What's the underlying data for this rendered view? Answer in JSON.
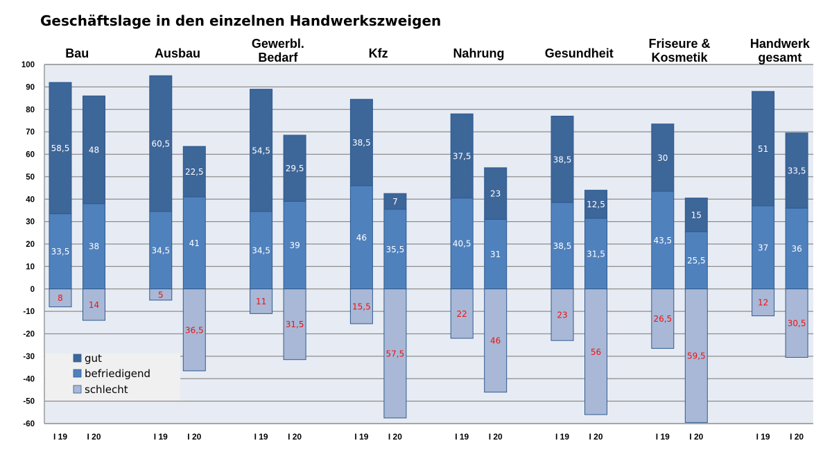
{
  "chart_data": {
    "type": "bar",
    "stacked": true,
    "title": "Geschäftslage in den einzelnen Handwerkszweigen",
    "xlabel": "",
    "ylabel": "",
    "ylim": [
      -60,
      100
    ],
    "yticks": [
      100,
      90,
      80,
      70,
      60,
      50,
      40,
      30,
      20,
      10,
      0,
      -10,
      -20,
      -30,
      -40,
      -50,
      -60
    ],
    "grid": true,
    "legend_position": "bottom-left",
    "groups": [
      {
        "label_lines": [
          "Bau"
        ]
      },
      {
        "label_lines": [
          "Ausbau"
        ]
      },
      {
        "label_lines": [
          "Gewerbl.",
          "Bedarf"
        ]
      },
      {
        "label_lines": [
          "Kfz"
        ]
      },
      {
        "label_lines": [
          "Nahrung"
        ]
      },
      {
        "label_lines": [
          "Gesundheit"
        ]
      },
      {
        "label_lines": [
          "Friseure &",
          "Kosmetik"
        ]
      },
      {
        "label_lines": [
          "Handwerk",
          "gesamt"
        ]
      }
    ],
    "periods": [
      "I 19",
      "I 20"
    ],
    "series": [
      {
        "name": "gut",
        "color": "#3d6699",
        "label_color": "#ffffff",
        "values": [
          [
            58.5,
            48
          ],
          [
            60.5,
            22.5
          ],
          [
            54.5,
            29.5
          ],
          [
            38.5,
            7
          ],
          [
            37.5,
            23
          ],
          [
            38.5,
            12.5
          ],
          [
            30,
            15
          ],
          [
            51,
            33.5
          ]
        ],
        "labels": [
          [
            "58,5",
            "48"
          ],
          [
            "60,5",
            "22,5"
          ],
          [
            "54,5",
            "29,5"
          ],
          [
            "38,5",
            "7"
          ],
          [
            "37,5",
            "23"
          ],
          [
            "38,5",
            "12,5"
          ],
          [
            "30",
            "15"
          ],
          [
            "51",
            "33,5"
          ]
        ]
      },
      {
        "name": "befriedigend",
        "color": "#4f81bd",
        "label_color": "#ffffff",
        "values": [
          [
            33.5,
            38
          ],
          [
            34.5,
            41
          ],
          [
            34.5,
            39
          ],
          [
            46,
            35.5
          ],
          [
            40.5,
            31
          ],
          [
            38.5,
            31.5
          ],
          [
            43.5,
            25.5
          ],
          [
            37,
            36
          ]
        ],
        "labels": [
          [
            "33,5",
            "38"
          ],
          [
            "34,5",
            "41"
          ],
          [
            "34,5",
            "39"
          ],
          [
            "46",
            "35,5"
          ],
          [
            "40,5",
            "31"
          ],
          [
            "38,5",
            "31,5"
          ],
          [
            "43,5",
            "25,5"
          ],
          [
            "37",
            "36"
          ]
        ]
      },
      {
        "name": "schlecht",
        "color": "#a9b8d6",
        "label_color": "#ee1111",
        "negative": true,
        "values": [
          [
            8,
            14
          ],
          [
            5,
            36.5
          ],
          [
            11,
            31.5
          ],
          [
            15.5,
            57.5
          ],
          [
            22,
            46
          ],
          [
            23,
            56
          ],
          [
            26.5,
            59.5
          ],
          [
            12,
            30.5
          ]
        ],
        "labels": [
          [
            "8",
            "14"
          ],
          [
            "5",
            "36,5"
          ],
          [
            "11",
            "31,5"
          ],
          [
            "15,5",
            "57,5"
          ],
          [
            "22",
            "46"
          ],
          [
            "23",
            "56"
          ],
          [
            "26,5",
            "59,5"
          ],
          [
            "12",
            "30,5"
          ]
        ]
      }
    ],
    "colors": {
      "plot_background": "#e7ecf4",
      "gridline": "#8c8c8c",
      "bar_border": "#2f5a8f",
      "legend_background": "#f0f0f0"
    }
  }
}
